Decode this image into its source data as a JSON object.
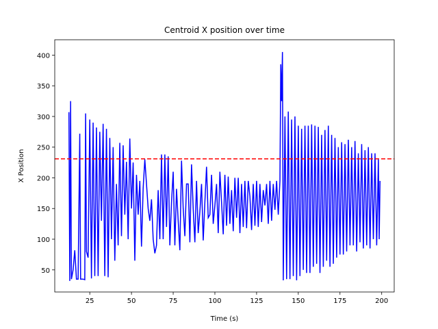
{
  "chart_data": {
    "type": "line",
    "title": "Centroid X position over time",
    "xlabel": "Time (s)",
    "ylabel": "X Position",
    "x": [
      12.5,
      13,
      13.5,
      14,
      15,
      16,
      17,
      18,
      19,
      19.5,
      21,
      22,
      22.5,
      23,
      24,
      25,
      26,
      27,
      28,
      29,
      30,
      31,
      32,
      33,
      34,
      35,
      36,
      37,
      38,
      39,
      40,
      41,
      42,
      43,
      44,
      45,
      46,
      47,
      48,
      49,
      50,
      51,
      52,
      53,
      54,
      55,
      56,
      57,
      58,
      59,
      60,
      61,
      62,
      63,
      64,
      65,
      66,
      67,
      68,
      69,
      70,
      71,
      72,
      73,
      74,
      75,
      76,
      77,
      78,
      79,
      80,
      81,
      82,
      83,
      84,
      85,
      86,
      87,
      88,
      89,
      90,
      91,
      92,
      93,
      94,
      95,
      96,
      97,
      98,
      99,
      100,
      101,
      102,
      103,
      104,
      105,
      106,
      107,
      108,
      109,
      110,
      111,
      112,
      113,
      114,
      115,
      116,
      117,
      118,
      119,
      120,
      121,
      122,
      123,
      124,
      125,
      126,
      127,
      128,
      129,
      130,
      131,
      132,
      133,
      134,
      135,
      136,
      137,
      138,
      139,
      139.5,
      140,
      140.5,
      141,
      142,
      143,
      144,
      145,
      146,
      147,
      148,
      149,
      150,
      151,
      152,
      153,
      154,
      155,
      156,
      157,
      158,
      159,
      160,
      161,
      162,
      163,
      164,
      165,
      166,
      167,
      168,
      169,
      170,
      171,
      172,
      173,
      174,
      175,
      176,
      177,
      178,
      179,
      180,
      181,
      182,
      183,
      184,
      185,
      186,
      187,
      188,
      189,
      190,
      191,
      192,
      193,
      194,
      195,
      196,
      197,
      198,
      198.5,
      199
    ],
    "series": [
      {
        "color": "#0000ff",
        "values": [
          307,
          32,
          325,
          35,
          50,
          82,
          35,
          35,
          272,
          35,
          35,
          34,
          305,
          80,
          70,
          295,
          36,
          290,
          40,
          282,
          40,
          275,
          130,
          288,
          40,
          280,
          38,
          265,
          100,
          250,
          65,
          190,
          90,
          257,
          105,
          253,
          140,
          226,
          100,
          264,
          150,
          225,
          65,
          205,
          140,
          195,
          88,
          183,
          230,
          190,
          150,
          130,
          165,
          100,
          77,
          90,
          180,
          100,
          238,
          100,
          238,
          120,
          235,
          90,
          160,
          210,
          90,
          182,
          130,
          82,
          228,
          150,
          105,
          190,
          190,
          95,
          222,
          150,
          95,
          195,
          110,
          145,
          190,
          98,
          160,
          218,
          135,
          140,
          205,
          125,
          155,
          190,
          110,
          210,
          160,
          108,
          205,
          122,
          202,
          125,
          180,
          113,
          200,
          135,
          200,
          110,
          190,
          120,
          195,
          118,
          195,
          170,
          115,
          190,
          122,
          195,
          120,
          190,
          128,
          180,
          155,
          190,
          125,
          195,
          130,
          190,
          148,
          195,
          140,
          195,
          385,
          325,
          405,
          33,
          300,
          35,
          308,
          35,
          295,
          40,
          300,
          33,
          285,
          40,
          280,
          50,
          285,
          45,
          285,
          45,
          287,
          55,
          285,
          60,
          283,
          45,
          270,
          55,
          278,
          65,
          285,
          55,
          270,
          60,
          265,
          70,
          250,
          75,
          258,
          75,
          255,
          80,
          262,
          90,
          250,
          90,
          260,
          80,
          240,
          95,
          255,
          85,
          245,
          90,
          250,
          85,
          240,
          100,
          240,
          90,
          230,
          100,
          195
        ]
      }
    ],
    "hline": {
      "value": 231,
      "color": "#ff0000"
    },
    "xlim": [
      4,
      207.5
    ],
    "ylim": [
      14,
      425
    ],
    "xticks": [
      25,
      50,
      75,
      100,
      125,
      150,
      175,
      200
    ],
    "yticks": [
      50,
      100,
      150,
      200,
      250,
      300,
      350,
      400
    ]
  }
}
